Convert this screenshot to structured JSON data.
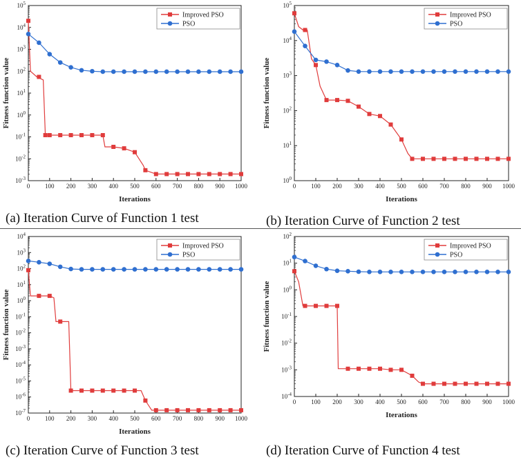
{
  "colors": {
    "improved": "#e03c3c",
    "pso": "#2f6fd0",
    "axis": "#222222"
  },
  "chart_data": [
    {
      "type": "line",
      "caption": "(a) Iteration Curve of Function 1 test",
      "xlabel": "Iterations",
      "ylabel": "Fitness function value",
      "yscale": "log",
      "xlim": [
        0,
        1000
      ],
      "ylim_exp": [
        -3,
        5
      ],
      "x_ticks": [
        "0",
        "100",
        "200",
        "300",
        "400",
        "500",
        "600",
        "700",
        "800",
        "900",
        "1000"
      ],
      "legend": [
        "Improved PSO",
        "PSO"
      ],
      "series": [
        {
          "name": "Improved PSO",
          "x": [
            0,
            10,
            40,
            70,
            80,
            100,
            150,
            200,
            250,
            300,
            350,
            360,
            400,
            450,
            500,
            540,
            550,
            600,
            650,
            700,
            750,
            800,
            850,
            900,
            950,
            1000
          ],
          "y": [
            20000,
            100,
            55,
            40,
            0.12,
            0.12,
            0.12,
            0.12,
            0.12,
            0.12,
            0.12,
            0.035,
            0.035,
            0.03,
            0.02,
            0.005,
            0.003,
            0.002,
            0.002,
            0.002,
            0.002,
            0.002,
            0.002,
            0.002,
            0.002,
            0.002
          ],
          "marker_x": [
            0,
            50,
            80,
            100,
            150,
            200,
            250,
            300,
            350,
            400,
            450,
            500,
            550,
            600,
            650,
            700,
            750,
            800,
            850,
            900,
            950,
            1000
          ]
        },
        {
          "name": "PSO",
          "x": [
            0,
            50,
            100,
            150,
            200,
            250,
            300,
            350,
            400,
            450,
            500,
            550,
            600,
            650,
            700,
            750,
            800,
            850,
            900,
            950,
            1000
          ],
          "y": [
            5000,
            2000,
            600,
            250,
            150,
            110,
            100,
            95,
            95,
            95,
            95,
            95,
            95,
            95,
            95,
            95,
            95,
            95,
            95,
            95,
            95
          ],
          "marker_x": [
            0,
            50,
            100,
            150,
            200,
            250,
            300,
            350,
            400,
            450,
            500,
            550,
            600,
            650,
            700,
            750,
            800,
            850,
            900,
            950,
            1000
          ]
        }
      ]
    },
    {
      "type": "line",
      "caption": "(b) Iteration Curve of Function 2 test",
      "xlabel": "Iterations",
      "ylabel": "Fitness function value",
      "yscale": "log",
      "xlim": [
        0,
        1000
      ],
      "ylim_exp": [
        0,
        5
      ],
      "x_ticks": [
        "0",
        "100",
        "200",
        "300",
        "400",
        "500",
        "600",
        "700",
        "800",
        "900",
        "1000"
      ],
      "legend": [
        "Improved PSO",
        "PSO"
      ],
      "series": [
        {
          "name": "Improved PSO",
          "x": [
            0,
            20,
            40,
            60,
            80,
            100,
            120,
            150,
            200,
            250,
            300,
            350,
            400,
            450,
            500,
            530,
            550,
            600,
            650,
            700,
            750,
            800,
            850,
            900,
            950,
            1000
          ],
          "y": [
            60000,
            25000,
            20000,
            20000,
            3000,
            2000,
            500,
            200,
            200,
            190,
            130,
            80,
            70,
            40,
            15,
            6,
            4.2,
            4.2,
            4.2,
            4.2,
            4.2,
            4.2,
            4.2,
            4.2,
            4.2,
            4.2
          ],
          "marker_x": [
            0,
            50,
            100,
            150,
            200,
            250,
            300,
            350,
            400,
            450,
            500,
            550,
            600,
            650,
            700,
            750,
            800,
            850,
            900,
            950,
            1000
          ]
        },
        {
          "name": "PSO",
          "x": [
            0,
            50,
            100,
            150,
            200,
            250,
            300,
            350,
            400,
            450,
            500,
            550,
            600,
            650,
            700,
            750,
            800,
            850,
            900,
            950,
            1000
          ],
          "y": [
            18000,
            7000,
            2800,
            2500,
            2000,
            1400,
            1300,
            1300,
            1300,
            1300,
            1300,
            1300,
            1300,
            1300,
            1300,
            1300,
            1300,
            1300,
            1300,
            1300,
            1300
          ],
          "marker_x": [
            0,
            50,
            100,
            150,
            200,
            250,
            300,
            350,
            400,
            450,
            500,
            550,
            600,
            650,
            700,
            750,
            800,
            850,
            900,
            950,
            1000
          ]
        }
      ]
    },
    {
      "type": "line",
      "caption": "(c) Iteration Curve of Function 3 test",
      "xlabel": "Iterations",
      "ylabel": "Fitness function value",
      "yscale": "log",
      "xlim": [
        0,
        1000
      ],
      "ylim_exp": [
        -7,
        4
      ],
      "x_ticks": [
        "0",
        "100",
        "200",
        "300",
        "400",
        "500",
        "600",
        "700",
        "800",
        "900",
        "1000"
      ],
      "legend": [
        "Improved PSO",
        "PSO"
      ],
      "series": [
        {
          "name": "Improved PSO",
          "x": [
            0,
            10,
            50,
            100,
            120,
            130,
            150,
            190,
            200,
            250,
            300,
            350,
            400,
            450,
            500,
            530,
            550,
            580,
            600,
            650,
            700,
            750,
            800,
            850,
            900,
            950,
            1000
          ],
          "y": [
            80,
            2,
            2,
            2,
            1.5,
            0.05,
            0.05,
            0.05,
            2.5e-06,
            2.5e-06,
            2.5e-06,
            2.5e-06,
            2.5e-06,
            2.5e-06,
            2.5e-06,
            2.5e-06,
            6e-07,
            1.5e-07,
            1.5e-07,
            1.5e-07,
            1.5e-07,
            1.5e-07,
            1.5e-07,
            1.5e-07,
            1.5e-07,
            1.5e-07,
            1.5e-07
          ],
          "marker_x": [
            0,
            50,
            100,
            150,
            200,
            250,
            300,
            350,
            400,
            450,
            500,
            550,
            600,
            650,
            700,
            750,
            800,
            850,
            900,
            950,
            1000
          ]
        },
        {
          "name": "PSO",
          "x": [
            0,
            50,
            100,
            150,
            200,
            250,
            300,
            350,
            400,
            450,
            500,
            550,
            600,
            650,
            700,
            750,
            800,
            850,
            900,
            950,
            1000
          ],
          "y": [
            300,
            250,
            200,
            130,
            95,
            90,
            90,
            90,
            90,
            90,
            90,
            90,
            90,
            90,
            90,
            90,
            90,
            90,
            90,
            90,
            90
          ],
          "marker_x": [
            0,
            50,
            100,
            150,
            200,
            250,
            300,
            350,
            400,
            450,
            500,
            550,
            600,
            650,
            700,
            750,
            800,
            850,
            900,
            950,
            1000
          ]
        }
      ]
    },
    {
      "type": "line",
      "caption": "(d) Iteration Curve of Function 4 test",
      "xlabel": "Iterations",
      "ylabel": "Fitness function value",
      "yscale": "log",
      "xlim": [
        0,
        1000
      ],
      "ylim_exp": [
        -4,
        2
      ],
      "x_ticks": [
        "0",
        "100",
        "200",
        "300",
        "400",
        "500",
        "600",
        "700",
        "800",
        "900",
        "1000"
      ],
      "legend": [
        "Improved PSO",
        "PSO"
      ],
      "series": [
        {
          "name": "Improved PSO",
          "x": [
            0,
            20,
            40,
            50,
            100,
            150,
            200,
            205,
            250,
            300,
            350,
            400,
            450,
            500,
            550,
            580,
            600,
            650,
            700,
            750,
            800,
            850,
            900,
            950,
            1000
          ],
          "y": [
            5,
            2,
            0.25,
            0.25,
            0.25,
            0.25,
            0.25,
            0.0011,
            0.0011,
            0.0011,
            0.0011,
            0.0011,
            0.001,
            0.001,
            0.0006,
            0.00035,
            0.0003,
            0.0003,
            0.0003,
            0.0003,
            0.0003,
            0.0003,
            0.0003,
            0.0003,
            0.0003
          ],
          "marker_x": [
            0,
            50,
            100,
            150,
            200,
            250,
            300,
            350,
            400,
            450,
            500,
            550,
            600,
            650,
            700,
            750,
            800,
            850,
            900,
            950,
            1000
          ]
        },
        {
          "name": "PSO",
          "x": [
            0,
            50,
            100,
            150,
            200,
            250,
            300,
            350,
            400,
            450,
            500,
            550,
            600,
            650,
            700,
            750,
            800,
            850,
            900,
            950,
            1000
          ],
          "y": [
            17,
            12,
            8,
            6,
            5.2,
            5,
            4.8,
            4.7,
            4.7,
            4.7,
            4.7,
            4.7,
            4.7,
            4.7,
            4.7,
            4.7,
            4.7,
            4.7,
            4.7,
            4.7,
            4.7
          ],
          "marker_x": [
            0,
            50,
            100,
            150,
            200,
            250,
            300,
            350,
            400,
            450,
            500,
            550,
            600,
            650,
            700,
            750,
            800,
            850,
            900,
            950,
            1000
          ]
        }
      ]
    }
  ]
}
